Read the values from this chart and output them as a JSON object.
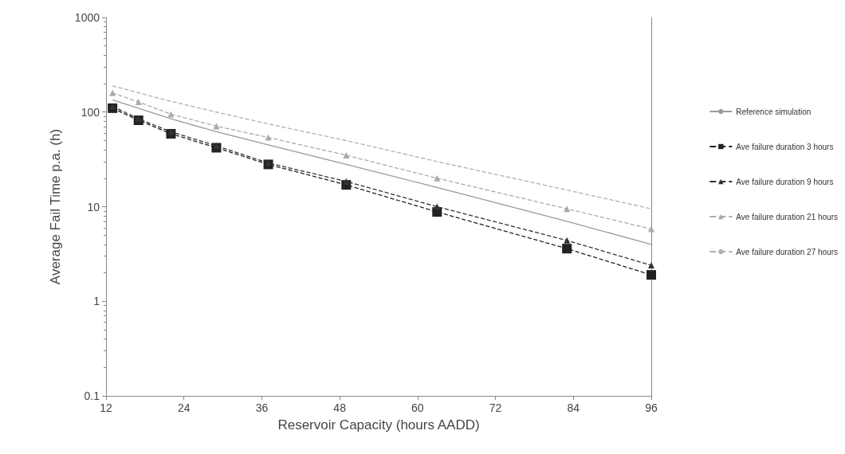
{
  "chart_data": {
    "type": "line",
    "xlabel": "Reservoir Capacity (hours AADD)",
    "ylabel": "Average Fail Time p.a. (h)",
    "xlim": [
      12,
      96
    ],
    "xticks": [
      12,
      24,
      36,
      48,
      60,
      72,
      84,
      96
    ],
    "ylim": [
      0.1,
      1000
    ],
    "yticks": [
      0.1,
      1,
      10,
      100,
      1000
    ],
    "log": "y",
    "grid": false,
    "legend": "right",
    "x": [
      13,
      17,
      22,
      29,
      37,
      49,
      63,
      83,
      96
    ],
    "series": [
      {
        "name": "Reference simulation",
        "color": "#9a9a9a",
        "marker": "none",
        "line_style": "solid",
        "values": [
          135,
          110,
          85,
          62,
          45,
          28,
          16,
          7,
          4.0
        ]
      },
      {
        "name": "Ave failure duration 3 hours",
        "color": "#222222",
        "marker": "square",
        "line_style": "dashed",
        "values": [
          110,
          82,
          59,
          42,
          28,
          17,
          8.8,
          3.6,
          1.9
        ]
      },
      {
        "name": "Ave failure duration 9 hours",
        "color": "#333333",
        "marker": "triangle",
        "line_style": "dashed",
        "values": [
          115,
          85,
          62,
          44,
          29,
          18.5,
          10,
          4.4,
          2.4
        ]
      },
      {
        "name": "Ave failure duration 21 hours",
        "color": "#aaaaaa",
        "marker": "triangle",
        "line_style": "dashed",
        "values": [
          160,
          128,
          95,
          71,
          54,
          35,
          20,
          9.5,
          5.8
        ]
      },
      {
        "name": "Ave failure duration 27 hours",
        "color": "#b0b0b0",
        "marker": "none",
        "line_style": "dashed",
        "values": [
          190,
          160,
          130,
          100,
          75,
          50,
          30,
          15,
          9.5
        ]
      }
    ]
  }
}
